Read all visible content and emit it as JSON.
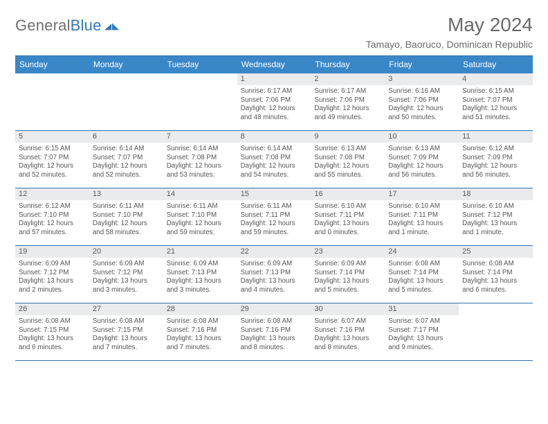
{
  "brand": {
    "name_a": "General",
    "name_b": "Blue"
  },
  "title": "May 2024",
  "subtitle": "Tamayo, Baoruco, Dominican Republic",
  "colors": {
    "header_bg": "#3a87c8",
    "rule": "#2f6fa8",
    "daynum_bg": "#e9ebed",
    "text": "#555555",
    "title_text": "#6a6a6a",
    "logo_gray": "#6f6f6f",
    "logo_blue": "#2f78bd"
  },
  "weekdays": [
    "Sunday",
    "Monday",
    "Tuesday",
    "Wednesday",
    "Thursday",
    "Friday",
    "Saturday"
  ],
  "weeks": [
    [
      null,
      null,
      null,
      {
        "n": "1",
        "sr": "6:17 AM",
        "ss": "7:06 PM",
        "dl": "12 hours and 48 minutes."
      },
      {
        "n": "2",
        "sr": "6:17 AM",
        "ss": "7:06 PM",
        "dl": "12 hours and 49 minutes."
      },
      {
        "n": "3",
        "sr": "6:16 AM",
        "ss": "7:06 PM",
        "dl": "12 hours and 50 minutes."
      },
      {
        "n": "4",
        "sr": "6:15 AM",
        "ss": "7:07 PM",
        "dl": "12 hours and 51 minutes."
      }
    ],
    [
      {
        "n": "5",
        "sr": "6:15 AM",
        "ss": "7:07 PM",
        "dl": "12 hours and 52 minutes."
      },
      {
        "n": "6",
        "sr": "6:14 AM",
        "ss": "7:07 PM",
        "dl": "12 hours and 52 minutes."
      },
      {
        "n": "7",
        "sr": "6:14 AM",
        "ss": "7:08 PM",
        "dl": "12 hours and 53 minutes."
      },
      {
        "n": "8",
        "sr": "6:14 AM",
        "ss": "7:08 PM",
        "dl": "12 hours and 54 minutes."
      },
      {
        "n": "9",
        "sr": "6:13 AM",
        "ss": "7:08 PM",
        "dl": "12 hours and 55 minutes."
      },
      {
        "n": "10",
        "sr": "6:13 AM",
        "ss": "7:09 PM",
        "dl": "12 hours and 56 minutes."
      },
      {
        "n": "11",
        "sr": "6:12 AM",
        "ss": "7:09 PM",
        "dl": "12 hours and 56 minutes."
      }
    ],
    [
      {
        "n": "12",
        "sr": "6:12 AM",
        "ss": "7:10 PM",
        "dl": "12 hours and 57 minutes."
      },
      {
        "n": "13",
        "sr": "6:11 AM",
        "ss": "7:10 PM",
        "dl": "12 hours and 58 minutes."
      },
      {
        "n": "14",
        "sr": "6:11 AM",
        "ss": "7:10 PM",
        "dl": "12 hours and 59 minutes."
      },
      {
        "n": "15",
        "sr": "6:11 AM",
        "ss": "7:11 PM",
        "dl": "12 hours and 59 minutes."
      },
      {
        "n": "16",
        "sr": "6:10 AM",
        "ss": "7:11 PM",
        "dl": "13 hours and 0 minutes."
      },
      {
        "n": "17",
        "sr": "6:10 AM",
        "ss": "7:11 PM",
        "dl": "13 hours and 1 minute."
      },
      {
        "n": "18",
        "sr": "6:10 AM",
        "ss": "7:12 PM",
        "dl": "13 hours and 1 minute."
      }
    ],
    [
      {
        "n": "19",
        "sr": "6:09 AM",
        "ss": "7:12 PM",
        "dl": "13 hours and 2 minutes."
      },
      {
        "n": "20",
        "sr": "6:09 AM",
        "ss": "7:12 PM",
        "dl": "13 hours and 3 minutes."
      },
      {
        "n": "21",
        "sr": "6:09 AM",
        "ss": "7:13 PM",
        "dl": "13 hours and 3 minutes."
      },
      {
        "n": "22",
        "sr": "6:09 AM",
        "ss": "7:13 PM",
        "dl": "13 hours and 4 minutes."
      },
      {
        "n": "23",
        "sr": "6:09 AM",
        "ss": "7:14 PM",
        "dl": "13 hours and 5 minutes."
      },
      {
        "n": "24",
        "sr": "6:08 AM",
        "ss": "7:14 PM",
        "dl": "13 hours and 5 minutes."
      },
      {
        "n": "25",
        "sr": "6:08 AM",
        "ss": "7:14 PM",
        "dl": "13 hours and 6 minutes."
      }
    ],
    [
      {
        "n": "26",
        "sr": "6:08 AM",
        "ss": "7:15 PM",
        "dl": "13 hours and 6 minutes."
      },
      {
        "n": "27",
        "sr": "6:08 AM",
        "ss": "7:15 PM",
        "dl": "13 hours and 7 minutes."
      },
      {
        "n": "28",
        "sr": "6:08 AM",
        "ss": "7:16 PM",
        "dl": "13 hours and 7 minutes."
      },
      {
        "n": "29",
        "sr": "6:08 AM",
        "ss": "7:16 PM",
        "dl": "13 hours and 8 minutes."
      },
      {
        "n": "30",
        "sr": "6:07 AM",
        "ss": "7:16 PM",
        "dl": "13 hours and 8 minutes."
      },
      {
        "n": "31",
        "sr": "6:07 AM",
        "ss": "7:17 PM",
        "dl": "13 hours and 9 minutes."
      },
      null
    ]
  ],
  "labels": {
    "sunrise": "Sunrise: ",
    "sunset": "Sunset: ",
    "daylight": "Daylight: "
  }
}
